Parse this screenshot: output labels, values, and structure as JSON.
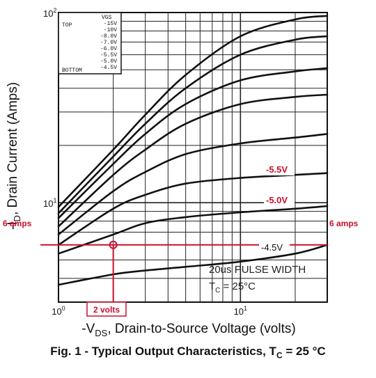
{
  "chart_data": {
    "type": "line",
    "x_scale": "log",
    "y_scale": "log",
    "xlim": [
      1,
      30
    ],
    "ylim": [
      3,
      100
    ],
    "grid": true,
    "xlabel": "-VDS, Drain-to-Source Voltage (volts)",
    "xlabel_parts": {
      "pre": "-V",
      "sub": "DS",
      "post": ", Drain-to-Source Voltage (volts)"
    },
    "ylabel": "-ID, Drain Current (Amps)",
    "ylabel_parts": {
      "pre": "-I",
      "sub": "D",
      "post": ", Drain Current (Amps)"
    },
    "x_ticks": [
      {
        "value": 1,
        "base": "10",
        "exp": "0"
      },
      {
        "value": 10,
        "base": "10",
        "exp": "1"
      }
    ],
    "y_ticks": [
      {
        "value": 10,
        "base": "10",
        "exp": "1"
      },
      {
        "value": 100,
        "base": "10",
        "exp": "2"
      }
    ],
    "legend": {
      "placement": "top-left",
      "header": "VGS",
      "top_label": "TOP",
      "bottom_label": "BOTTOM",
      "entries": [
        "-15V",
        "-10V",
        "-8.0V",
        "-7.0V",
        "-6.0V",
        "-5.5V",
        "-5.0V",
        "-4.5V"
      ]
    },
    "series": [
      {
        "name": "-15V",
        "x": [
          1,
          2,
          3,
          5,
          10,
          20,
          30
        ],
        "y": [
          9.5,
          19,
          29,
          47,
          75,
          92,
          96
        ]
      },
      {
        "name": "-10V",
        "x": [
          1,
          2,
          3,
          5,
          10,
          20,
          30
        ],
        "y": [
          8.8,
          17.5,
          26,
          40,
          60,
          72,
          75
        ]
      },
      {
        "name": "-8.0V",
        "x": [
          1,
          2,
          3,
          5,
          10,
          20,
          30
        ],
        "y": [
          8.3,
          16,
          23,
          33,
          44,
          49,
          51
        ]
      },
      {
        "name": "-7.0V",
        "x": [
          1,
          2,
          3,
          5,
          10,
          20,
          30
        ],
        "y": [
          7.5,
          14,
          19,
          26,
          33,
          36,
          37
        ]
      },
      {
        "name": "-6.0V",
        "x": [
          1,
          2,
          3,
          5,
          10,
          20,
          30
        ],
        "y": [
          6.8,
          11.5,
          14.5,
          18,
          20.5,
          22,
          23
        ]
      },
      {
        "name": "-5.5V",
        "x": [
          1,
          2,
          3,
          5,
          10,
          20,
          30
        ],
        "y": [
          6,
          9.3,
          11,
          12.6,
          13.5,
          14,
          14.3
        ]
      },
      {
        "name": "-5.0V",
        "x": [
          1,
          2,
          3,
          5,
          10,
          20,
          30
        ],
        "y": [
          5.4,
          6.8,
          7.8,
          8.4,
          8.9,
          9.3,
          9.6
        ]
      },
      {
        "name": "-4.5V",
        "x": [
          1,
          2,
          3,
          5,
          10,
          20,
          30
        ],
        "y": [
          3.7,
          4.2,
          4.4,
          4.6,
          4.9,
          5.4,
          6
        ]
      }
    ],
    "curve_labels": [
      {
        "text": "-5.5V",
        "color": "#c8102e"
      },
      {
        "text": "-5.0V",
        "color": "#c8102e"
      },
      {
        "text": "-4.5V",
        "color": "#111111"
      }
    ],
    "annotations": {
      "note_line1": "20us PULSE WIDTH",
      "note_line2_pre": "T",
      "note_line2_sub": "C",
      "note_line2_post": " = 25°C",
      "current_label_left": "6 amps",
      "current_label_right": "6 amps",
      "voltage_label": "2 volts",
      "marker_point": {
        "x": 2,
        "y": 6
      },
      "annotation_color": "#c8102e"
    }
  },
  "caption": {
    "pre": "Fig. 1 - Typical Output Characteristics, T",
    "sub": "C",
    "post": " = 25 °C"
  }
}
